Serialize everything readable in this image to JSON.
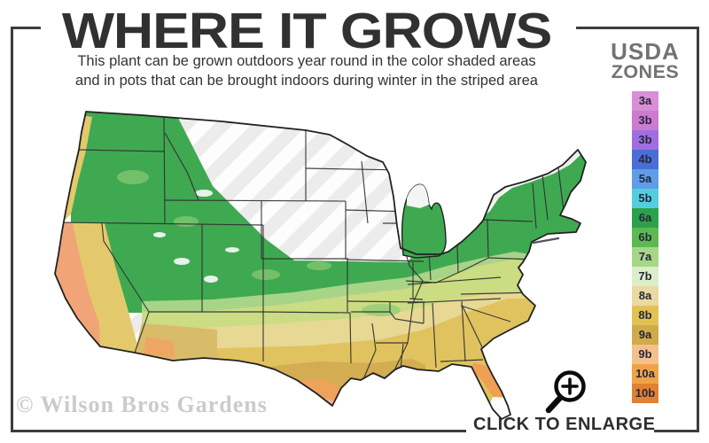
{
  "header": {
    "title": "WHERE IT GROWS",
    "subtitle_line1": "This plant can be grown outdoors year round in the color shaded areas",
    "subtitle_line2": "and in pots that can be brought indoors during winter in the striped area"
  },
  "legend": {
    "title_line1": "USDA",
    "title_line2": "ZONES",
    "zones": [
      {
        "label": "3a",
        "color": "#d88fd6"
      },
      {
        "label": "3b",
        "color": "#cb7bd0"
      },
      {
        "label": "3b",
        "color": "#a06ee0"
      },
      {
        "label": "4b",
        "color": "#4a6ed6"
      },
      {
        "label": "5a",
        "color": "#5f9de8"
      },
      {
        "label": "5b",
        "color": "#53cede"
      },
      {
        "label": "6a",
        "color": "#2da04c"
      },
      {
        "label": "6b",
        "color": "#5cb952"
      },
      {
        "label": "7a",
        "color": "#a6d789"
      },
      {
        "label": "7b",
        "color": "#dcedca"
      },
      {
        "label": "8a",
        "color": "#e9d9a2"
      },
      {
        "label": "8b",
        "color": "#e2c253"
      },
      {
        "label": "9a",
        "color": "#d1ab4b"
      },
      {
        "label": "9b",
        "color": "#f4c18c"
      },
      {
        "label": "10a",
        "color": "#f0a246"
      },
      {
        "label": "10b",
        "color": "#e08033"
      }
    ]
  },
  "map": {
    "palette": {
      "stripe_bg": "#fdfdfd",
      "stripe": "#ececec",
      "green": "#3fa952",
      "green_light": "#a8d488",
      "yellow_green": "#ccdc82",
      "khaki": "#e7d894",
      "gold": "#e0c35f",
      "tan": "#d2ad52",
      "orange": "#efa25c",
      "salmon": "#f4b183",
      "fl_orange": "#f0a055",
      "white_tip": "#fcfcfc",
      "coast_yellow": "#e3c96c",
      "coast_salmon": "#f0a477",
      "desert_tan": "#d9bc6a",
      "desert_orange": "#eda763",
      "outline": "#222222",
      "state_line": "#2f2f2f",
      "lake_line": "#555555"
    }
  },
  "footer": {
    "watermark": "© Wilson Bros Gardens",
    "cta": "CLICK TO ENLARGE"
  },
  "icons": {
    "magnifier": "zoom-in-magnifier"
  },
  "frame_color": "#3d3d3d"
}
